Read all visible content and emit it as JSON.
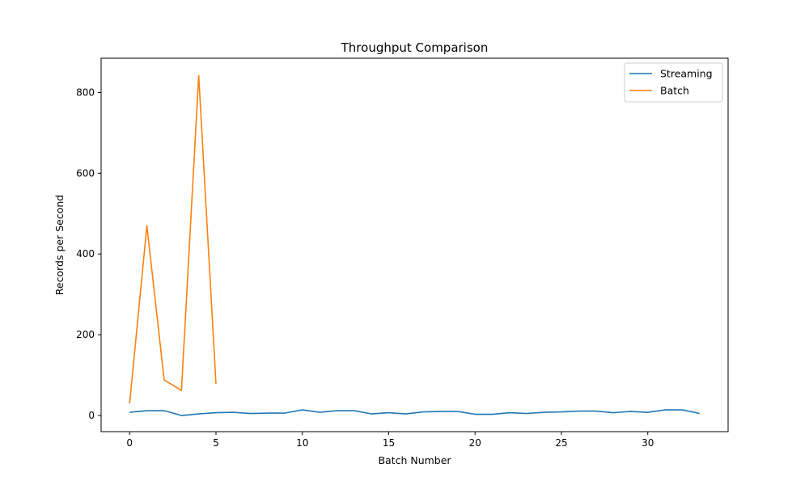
{
  "chart_data": {
    "type": "line",
    "title": "Throughput Comparison",
    "xlabel": "Batch Number",
    "ylabel": "Records per Second",
    "xlim": [
      -1.65,
      34.65
    ],
    "ylim": [
      -40,
      885
    ],
    "xticks": [
      0,
      5,
      10,
      15,
      20,
      25,
      30
    ],
    "yticks": [
      0,
      200,
      400,
      600,
      800
    ],
    "grid": false,
    "legend_position": "top-right",
    "series": [
      {
        "name": "Streaming",
        "color": "#1f77b4",
        "x": [
          0,
          1,
          2,
          3,
          4,
          5,
          6,
          7,
          8,
          9,
          10,
          11,
          12,
          13,
          14,
          15,
          16,
          17,
          18,
          19,
          20,
          21,
          22,
          23,
          24,
          25,
          26,
          27,
          28,
          29,
          30,
          31,
          32,
          33
        ],
        "values": [
          8,
          12,
          12,
          0,
          4,
          7,
          8,
          5,
          6,
          6,
          14,
          8,
          12,
          12,
          4,
          7,
          4,
          9,
          10,
          10,
          3,
          3,
          7,
          5,
          8,
          9,
          11,
          11,
          7,
          10,
          8,
          14,
          14,
          5
        ]
      },
      {
        "name": "Batch",
        "color": "#ff7f0e",
        "x": [
          0,
          1,
          2,
          3,
          4,
          5
        ],
        "values": [
          30,
          470,
          88,
          62,
          842,
          78
        ]
      }
    ]
  }
}
